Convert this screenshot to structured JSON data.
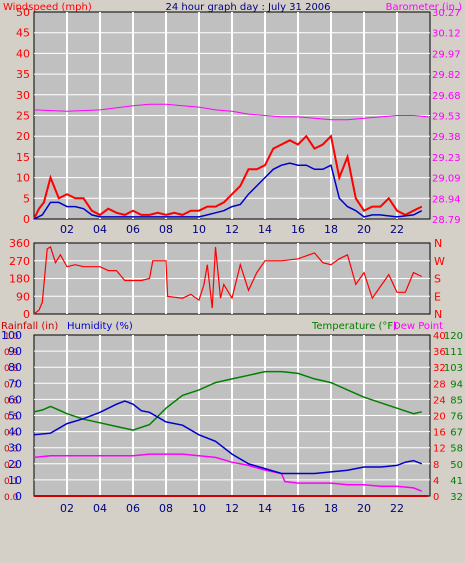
{
  "header": {
    "windspeed_label": "Windspeed (mph)",
    "title": "24 hour graph day : July 31 2006",
    "barometer_label": "Barometer (in.)"
  },
  "panel3_header": {
    "rain_label": "Rainfall (in)",
    "humidity_label": "Humidity (%)",
    "temperature_label": "Temperature (°F)",
    "dewpoint_label": "Dew Point"
  },
  "colors": {
    "plot_bg": "#c0c0c0",
    "grid": "#ffffff",
    "wind": "#ff0000",
    "gust_avg": "#0000cc",
    "barometer": "#ff00ff",
    "direction": "#ff0000",
    "humidity": "#0000cc",
    "temperature": "#008000",
    "dewpoint": "#ff00ff",
    "rain": "#cc0000"
  },
  "chart_data": [
    {
      "type": "line",
      "title": "24 hour graph day : July 31 2006",
      "ylabel": "Windspeed (mph)",
      "y2label": "Barometer (in.)",
      "x_ticks": [
        "02",
        "04",
        "06",
        "08",
        "10",
        "12",
        "14",
        "16",
        "18",
        "20",
        "22"
      ],
      "y_ticks": [
        "0",
        "5",
        "10",
        "15",
        "20",
        "25",
        "30",
        "35",
        "40",
        "45",
        "50"
      ],
      "y2_ticks": [
        "28.79",
        "28.94",
        "29.09",
        "29.23",
        "29.38",
        "29.53",
        "29.68",
        "29.82",
        "29.97",
        "30.12",
        "30.27"
      ],
      "ylim": [
        0,
        50
      ],
      "series": [
        {
          "name": "Windspeed (mph)",
          "color": "#ff0000",
          "x": [
            0.0,
            0.3,
            0.6,
            1.0,
            1.5,
            2.0,
            2.5,
            3.0,
            3.5,
            4.0,
            4.5,
            5.0,
            5.5,
            6.0,
            6.5,
            7.0,
            7.5,
            8.0,
            8.5,
            9.0,
            9.5,
            10.0,
            10.5,
            11.0,
            11.5,
            12.0,
            12.5,
            13.0,
            13.5,
            14.0,
            14.5,
            15.0,
            15.5,
            16.0,
            16.5,
            17.0,
            17.5,
            18.0,
            18.5,
            19.0,
            19.5,
            20.0,
            20.5,
            21.0,
            21.5,
            22.0,
            22.5,
            23.0,
            23.5
          ],
          "y": [
            0.0,
            2.5,
            4.0,
            10.0,
            5.0,
            6.0,
            5.0,
            5.0,
            2.0,
            1.0,
            2.5,
            1.5,
            1.0,
            2.0,
            1.0,
            1.0,
            1.5,
            1.0,
            1.5,
            1.0,
            2.0,
            2.0,
            3.0,
            3.0,
            4.0,
            6.0,
            8.0,
            12.0,
            12.0,
            13.0,
            17.0,
            18.0,
            19.0,
            18.0,
            20.0,
            17.0,
            18.0,
            20.0,
            10.0,
            15.0,
            5.0,
            2.0,
            3.0,
            3.0,
            5.0,
            2.0,
            1.0,
            2.0,
            3.0
          ]
        },
        {
          "name": "Average wind",
          "color": "#0000cc",
          "x": [
            0.0,
            0.5,
            1.0,
            1.5,
            2.0,
            2.5,
            3.0,
            3.5,
            4.0,
            5.0,
            6.0,
            7.0,
            8.0,
            9.0,
            10.0,
            10.5,
            11.0,
            11.5,
            12.0,
            12.5,
            13.0,
            13.5,
            14.0,
            14.5,
            15.0,
            15.5,
            16.0,
            16.5,
            17.0,
            17.5,
            18.0,
            18.5,
            19.0,
            19.5,
            20.0,
            20.5,
            21.0,
            22.0,
            23.0,
            23.5
          ],
          "y": [
            0.0,
            1.0,
            4.0,
            4.0,
            3.0,
            3.0,
            2.5,
            1.0,
            0.5,
            0.5,
            0.5,
            0.5,
            0.5,
            0.5,
            0.5,
            1.0,
            1.5,
            2.0,
            3.0,
            3.5,
            6.0,
            8.0,
            10.0,
            12.0,
            13.0,
            13.5,
            13.0,
            13.0,
            12.0,
            12.0,
            13.0,
            5.0,
            3.0,
            2.0,
            0.5,
            1.0,
            1.0,
            0.5,
            1.0,
            2.0
          ]
        },
        {
          "name": "Barometer (in.)",
          "color": "#ff00ff",
          "x": [
            0,
            2,
            4,
            6,
            7,
            8,
            9,
            10,
            11,
            12,
            13,
            14,
            15,
            16,
            17,
            18,
            19,
            20,
            21,
            22,
            23,
            23.9
          ],
          "y": [
            29.57,
            29.56,
            29.57,
            29.6,
            29.61,
            29.61,
            29.6,
            29.59,
            29.57,
            29.56,
            29.54,
            29.53,
            29.52,
            29.52,
            29.51,
            29.5,
            29.5,
            29.51,
            29.52,
            29.53,
            29.53,
            29.52
          ]
        }
      ]
    },
    {
      "type": "line",
      "y_ticks": [
        "360",
        "270",
        "180",
        "90",
        "0"
      ],
      "y2_ticks": [
        "N",
        "W",
        "S",
        "E",
        "N"
      ],
      "ylim": [
        0,
        360
      ],
      "series": [
        {
          "name": "Wind direction",
          "color": "#ff0000",
          "x": [
            0,
            0.3,
            0.5,
            0.8,
            1.0,
            1.3,
            1.6,
            2.0,
            2.5,
            3.0,
            3.5,
            4.0,
            4.5,
            5.0,
            5.5,
            6.0,
            6.5,
            7.0,
            7.2,
            8.0,
            8.1,
            9.0,
            9.5,
            10.0,
            10.3,
            10.5,
            10.8,
            11.0,
            11.3,
            11.5,
            12.0,
            12.5,
            13.0,
            13.5,
            14.0,
            15.0,
            16.0,
            17.0,
            17.5,
            18.0,
            18.5,
            19.0,
            19.5,
            20.0,
            20.5,
            21.0,
            21.5,
            22.0,
            22.5,
            23.0,
            23.5
          ],
          "y": [
            0,
            20,
            60,
            330,
            340,
            260,
            300,
            240,
            250,
            240,
            240,
            240,
            220,
            220,
            170,
            170,
            170,
            180,
            270,
            270,
            90,
            80,
            100,
            70,
            150,
            250,
            30,
            340,
            80,
            150,
            80,
            250,
            120,
            210,
            270,
            270,
            280,
            310,
            260,
            250,
            280,
            300,
            150,
            210,
            80,
            140,
            200,
            110,
            110,
            210,
            190
          ]
        }
      ]
    },
    {
      "type": "line",
      "ylabel": "Humidity (%)",
      "y2label": "Temperature (°F)",
      "rain_ticks": [
        "1.0",
        "0.9",
        "0.8",
        "0.7",
        "0.6",
        "0.5",
        "0.4",
        "0.3",
        "0.2",
        "0.1",
        "0.0"
      ],
      "humidity_ticks": [
        "100",
        "90",
        "80",
        "70",
        "60",
        "50",
        "40",
        "30",
        "20",
        "10",
        "0"
      ],
      "dewpoint_ticks": [
        "40",
        "36",
        "32",
        "28",
        "24",
        "20",
        "16",
        "12",
        "8",
        "4",
        "0"
      ],
      "temperature_ticks": [
        "120",
        "111",
        "103",
        "94",
        "85",
        "76",
        "67",
        "58",
        "50",
        "41",
        "32"
      ],
      "humidity_lim": [
        0,
        100
      ],
      "temperature_lim": [
        32,
        120
      ],
      "series": [
        {
          "name": "Humidity (%)",
          "color": "#0000cc",
          "x": [
            0,
            1,
            2,
            3,
            4,
            5,
            5.5,
            6,
            6.5,
            7,
            8,
            9,
            10,
            11,
            12,
            13,
            14,
            15,
            16,
            17,
            18,
            19,
            20,
            21,
            22,
            22.5,
            23,
            23.5
          ],
          "y": [
            38,
            39,
            45,
            48,
            52,
            57,
            59,
            57,
            53,
            52,
            46,
            44,
            38,
            34,
            26,
            20,
            17,
            14,
            14,
            14,
            15,
            16,
            18,
            18,
            19,
            21,
            22,
            20
          ]
        },
        {
          "name": "Temperature (°F)",
          "color": "#008000",
          "x": [
            0,
            0.5,
            1,
            1.5,
            2,
            3,
            4,
            5,
            6,
            7,
            8,
            9,
            10,
            11,
            12,
            13,
            14,
            15,
            16,
            17,
            18,
            19,
            20,
            21,
            22,
            23,
            23.5
          ],
          "y": [
            78,
            79,
            81,
            79,
            77,
            74,
            72,
            70,
            68,
            71,
            80,
            87,
            90,
            94,
            96,
            98,
            100,
            100,
            99,
            96,
            94,
            90,
            86,
            83,
            80,
            77,
            78
          ]
        },
        {
          "name": "Dew Point",
          "color": "#ff00ff",
          "x": [
            0,
            1,
            2,
            3,
            4,
            5,
            6,
            7,
            8,
            9,
            10,
            11,
            12,
            13,
            14,
            15,
            15.2,
            16,
            17,
            18,
            19,
            20,
            21,
            22,
            23,
            23.5
          ],
          "y": [
            9.6,
            10.0,
            10.0,
            10.0,
            10.0,
            10.0,
            10.0,
            10.4,
            10.4,
            10.4,
            10.0,
            9.6,
            8.4,
            7.6,
            6.4,
            5.6,
            3.6,
            3.2,
            3.2,
            3.2,
            2.8,
            2.8,
            2.4,
            2.4,
            2.0,
            1.2
          ]
        },
        {
          "name": "Rainfall (in)",
          "color": "#cc0000",
          "x": [
            0,
            23.9
          ],
          "y": [
            0.0,
            0.0
          ]
        }
      ]
    }
  ]
}
